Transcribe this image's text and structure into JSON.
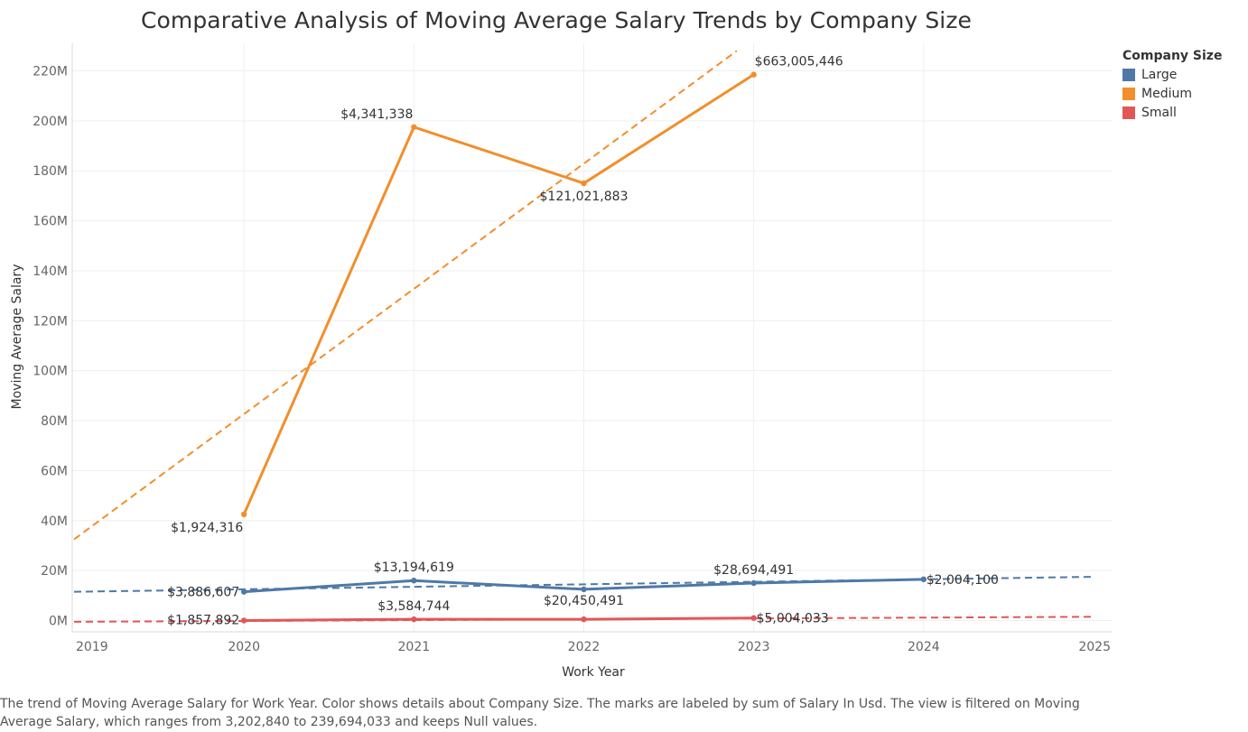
{
  "chart_data": {
    "type": "line",
    "title": "Comparative Analysis of Moving Average Salary Trends by Company Size",
    "xlabel": "Work Year",
    "ylabel": "Moving Average Salary",
    "xlim": [
      2019,
      2025
    ],
    "ylim": [
      -3000000,
      228000000
    ],
    "x_ticks": [
      2019,
      2020,
      2021,
      2022,
      2023,
      2024,
      2025
    ],
    "y_ticks": [
      {
        "value": 0,
        "label": "0M"
      },
      {
        "value": 20000000,
        "label": "20M"
      },
      {
        "value": 40000000,
        "label": "40M"
      },
      {
        "value": 60000000,
        "label": "60M"
      },
      {
        "value": 80000000,
        "label": "80M"
      },
      {
        "value": 100000000,
        "label": "100M"
      },
      {
        "value": 120000000,
        "label": "120M"
      },
      {
        "value": 140000000,
        "label": "140M"
      },
      {
        "value": 160000000,
        "label": "160M"
      },
      {
        "value": 180000000,
        "label": "180M"
      },
      {
        "value": 200000000,
        "label": "200M"
      },
      {
        "value": 220000000,
        "label": "220M"
      }
    ],
    "grid": true,
    "legend": {
      "title": "Company Size",
      "placement": "top-right"
    },
    "series": [
      {
        "name": "Large",
        "color": "#4e79a7",
        "points": [
          {
            "x": 2020,
            "y": 11500000,
            "label": "$3,886,607"
          },
          {
            "x": 2021,
            "y": 16000000,
            "label": "$13,194,619"
          },
          {
            "x": 2022,
            "y": 12500000,
            "label": "$20,450,491"
          },
          {
            "x": 2023,
            "y": 15000000,
            "label": "$28,694,491"
          },
          {
            "x": 2024,
            "y": 16500000,
            "label": "$2,004,100"
          }
        ],
        "trend": {
          "from": [
            2019,
            11500000
          ],
          "to": [
            2025,
            17500000
          ]
        }
      },
      {
        "name": "Medium",
        "color": "#f28e2b",
        "points": [
          {
            "x": 2020,
            "y": 42500000,
            "label": "$1,924,316"
          },
          {
            "x": 2021,
            "y": 197500000,
            "label": "$4,341,338"
          },
          {
            "x": 2022,
            "y": 175000000,
            "label": "$121,021,883"
          },
          {
            "x": 2023,
            "y": 218500000,
            "label": "$663,005,446"
          }
        ],
        "trend": {
          "from": [
            2019,
            32500000
          ],
          "to": [
            2022.9,
            228000000
          ]
        }
      },
      {
        "name": "Small",
        "color": "#e15759",
        "points": [
          {
            "x": 2020,
            "y": 0,
            "label": "$1,857,892"
          },
          {
            "x": 2021,
            "y": 500000,
            "label": "$3,584,744"
          },
          {
            "x": 2022,
            "y": 500000,
            "label": ""
          },
          {
            "x": 2023,
            "y": 1000000,
            "label": "$5,004,033"
          }
        ],
        "trend": {
          "from": [
            2019,
            -500000
          ],
          "to": [
            2025,
            1500000
          ]
        }
      }
    ]
  },
  "caption": "The trend of Moving Average Salary for Work Year.  Color shows details about Company Size.  The marks are labeled by sum of Salary In Usd. The view is filtered on Moving Average Salary, which ranges from 3,202,840 to 239,694,033 and keeps Null values."
}
